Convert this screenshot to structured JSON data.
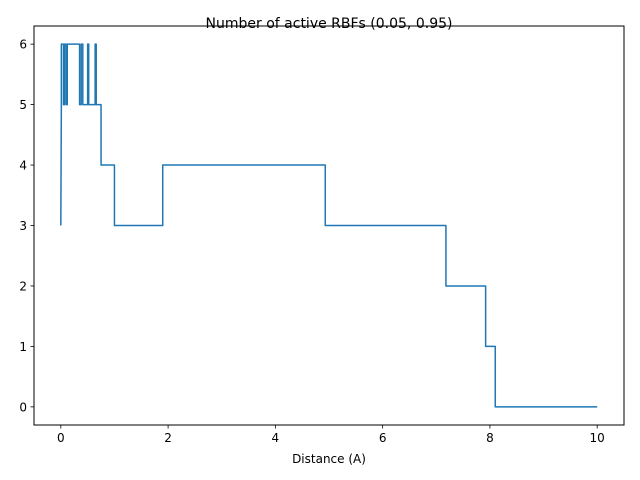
{
  "chart_data": {
    "type": "line",
    "title": "Number of active RBFs (0.05, 0.95)",
    "xlabel": "Distance (A)",
    "ylabel": "",
    "xlim": [
      -0.5,
      10.5
    ],
    "ylim": [
      -0.3,
      6.3
    ],
    "xticks": [
      0,
      2,
      4,
      6,
      8,
      10
    ],
    "yticks": [
      0,
      1,
      2,
      3,
      4,
      5,
      6
    ],
    "xtick_labels": [
      "0",
      "2",
      "4",
      "6",
      "8",
      "10"
    ],
    "ytick_labels": [
      "0",
      "1",
      "2",
      "3",
      "4",
      "5",
      "6"
    ],
    "grid": false,
    "series_color": "#1f77b4",
    "series": [
      {
        "x": [
          0.0,
          0.01,
          0.01,
          0.05,
          0.05,
          0.07,
          0.07,
          0.1,
          0.1,
          0.12,
          0.12,
          0.35,
          0.35,
          0.38,
          0.38,
          0.41,
          0.41,
          0.5,
          0.5,
          0.52,
          0.52,
          0.64,
          0.64,
          0.66,
          0.66,
          0.75,
          0.75,
          1.0,
          1.0,
          1.9,
          1.9,
          4.93,
          4.93,
          7.18,
          7.18,
          7.92,
          7.92,
          8.1,
          8.1,
          10.0
        ],
        "values": [
          3,
          5,
          6,
          6,
          5,
          5,
          6,
          6,
          5,
          5,
          6,
          6,
          5,
          5,
          6,
          6,
          5,
          5,
          6,
          6,
          5,
          5,
          6,
          6,
          5,
          5,
          4,
          4,
          3,
          3,
          4,
          4,
          3,
          3,
          2,
          2,
          1,
          1,
          0,
          0
        ]
      }
    ]
  }
}
